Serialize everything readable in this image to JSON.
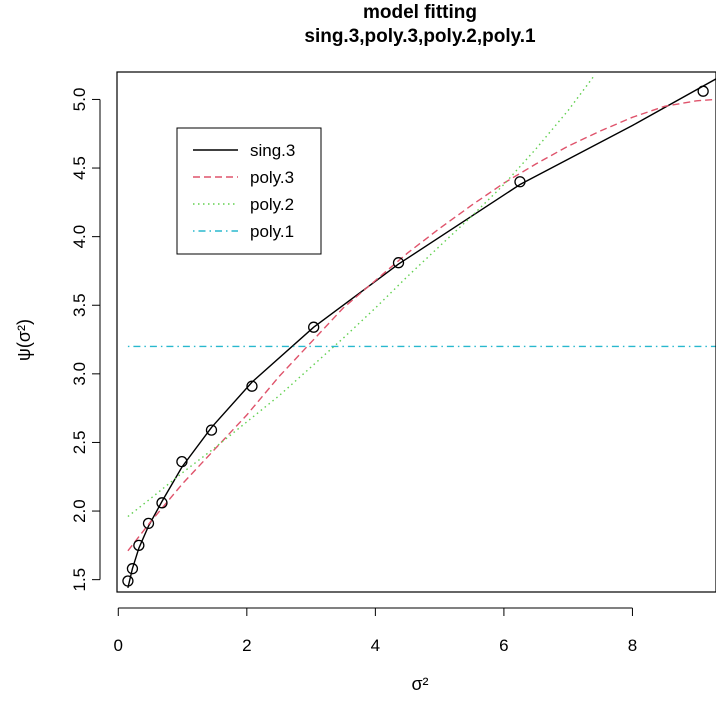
{
  "chart_data": {
    "type": "scatter",
    "title": "model fitting",
    "subtitle": "sing.3,poly.3,poly.2,poly.1",
    "xlabel": "σ²",
    "ylabel": "ψ(σ²)",
    "xlim": [
      -0.02,
      9.3
    ],
    "ylim": [
      1.41,
      5.2
    ],
    "xticks": [
      0,
      2,
      4,
      6,
      8
    ],
    "xtick_labels": [
      "0",
      "2",
      "4",
      "6",
      "8"
    ],
    "yticks": [
      1.5,
      2.0,
      2.5,
      3.0,
      3.5,
      4.0,
      4.5,
      5.0
    ],
    "ytick_labels": [
      "1.5",
      "2.0",
      "2.5",
      "3.0",
      "3.5",
      "4.0",
      "4.5",
      "5.0"
    ],
    "grid": false,
    "legend_position": "top-left",
    "points": {
      "marker": "open-circle",
      "x": [
        0.15,
        0.22,
        0.32,
        0.47,
        0.68,
        0.99,
        1.45,
        2.08,
        3.04,
        4.36,
        6.25,
        9.1
      ],
      "y": [
        1.49,
        1.58,
        1.75,
        1.91,
        2.06,
        2.36,
        2.59,
        2.91,
        3.34,
        3.81,
        4.4,
        5.06
      ]
    },
    "series": [
      {
        "name": "sing.3",
        "color": "#000000",
        "dash": "solid",
        "x": [
          0.15,
          0.22,
          0.32,
          0.47,
          0.68,
          0.99,
          1.45,
          2.08,
          3.04,
          4.36,
          6.25,
          8.0,
          9.3
        ],
        "y": [
          1.44,
          1.58,
          1.73,
          1.89,
          2.07,
          2.32,
          2.61,
          2.94,
          3.34,
          3.8,
          4.38,
          4.81,
          5.15
        ]
      },
      {
        "name": "poly.3",
        "color": "#DF536B",
        "dash": "dashed",
        "x": [
          0.15,
          0.5,
          1.0,
          1.5,
          2.0,
          2.5,
          3.0,
          3.5,
          4.0,
          4.5,
          5.0,
          5.5,
          6.0,
          6.5,
          7.0,
          7.5,
          8.0,
          8.5,
          9.0,
          9.3
        ],
        "y": [
          1.71,
          1.92,
          2.2,
          2.45,
          2.7,
          2.98,
          3.23,
          3.48,
          3.68,
          3.88,
          4.06,
          4.23,
          4.39,
          4.53,
          4.66,
          4.77,
          4.87,
          4.95,
          4.99,
          5.0
        ]
      },
      {
        "name": "poly.2",
        "color": "#61D04F",
        "dash": "dotted",
        "x": [
          0.15,
          0.5,
          1.0,
          1.5,
          2.0,
          2.5,
          3.0,
          3.5,
          4.0,
          4.5,
          5.0,
          5.5,
          6.0,
          6.5,
          7.0,
          7.4
        ],
        "y": [
          1.96,
          2.09,
          2.28,
          2.46,
          2.65,
          2.84,
          3.05,
          3.26,
          3.48,
          3.71,
          3.93,
          4.15,
          4.38,
          4.64,
          4.92,
          5.17
        ]
      },
      {
        "name": "poly.1",
        "color": "#28B8CE",
        "dash": "dashdot",
        "x": [
          0.15,
          9.3
        ],
        "y": [
          3.2,
          3.2
        ]
      }
    ]
  }
}
